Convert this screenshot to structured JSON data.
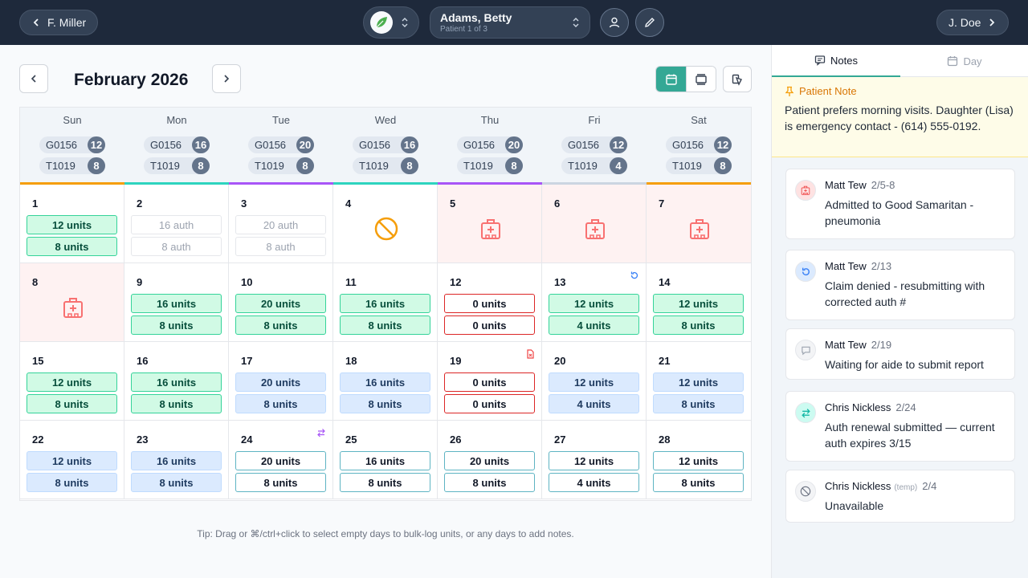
{
  "topbar": {
    "prev_user": "F. Miller",
    "patient_name": "Adams, Betty",
    "patient_sub": "Patient 1 of 3",
    "next_user": "J. Doe"
  },
  "calendar": {
    "month": "February 2026",
    "days_of_week": [
      "Sun",
      "Mon",
      "Tue",
      "Wed",
      "Thu",
      "Fri",
      "Sat"
    ],
    "header": [
      {
        "g": {
          "code": "G0156",
          "count": "12"
        },
        "t": {
          "code": "T1019",
          "count": "8"
        },
        "bar": "#f59e0b"
      },
      {
        "g": {
          "code": "G0156",
          "count": "16"
        },
        "t": {
          "code": "T1019",
          "count": "8"
        },
        "bar": "#2dd4bf"
      },
      {
        "g": {
          "code": "G0156",
          "count": "20"
        },
        "t": {
          "code": "T1019",
          "count": "8"
        },
        "bar": "#a855f7"
      },
      {
        "g": {
          "code": "G0156",
          "count": "16"
        },
        "t": {
          "code": "T1019",
          "count": "8"
        },
        "bar": "#2dd4bf"
      },
      {
        "g": {
          "code": "G0156",
          "count": "20"
        },
        "t": {
          "code": "T1019",
          "count": "8"
        },
        "bar": "#a855f7"
      },
      {
        "g": {
          "code": "G0156",
          "count": "12"
        },
        "t": {
          "code": "T1019",
          "count": "4"
        },
        "bar": "#cbd5e1"
      },
      {
        "g": {
          "code": "G0156",
          "count": "12"
        },
        "t": {
          "code": "T1019",
          "count": "8"
        },
        "bar": "#f59e0b"
      }
    ],
    "days": [
      {
        "n": "1",
        "type": "units",
        "style": "green",
        "a": "12 units",
        "b": "8 units"
      },
      {
        "n": "2",
        "type": "units",
        "style": "auth",
        "a": "16 auth",
        "b": "8 auth"
      },
      {
        "n": "3",
        "type": "units",
        "style": "auth",
        "a": "20 auth",
        "b": "8 auth"
      },
      {
        "n": "4",
        "type": "unavailable"
      },
      {
        "n": "5",
        "type": "hospital"
      },
      {
        "n": "6",
        "type": "hospital"
      },
      {
        "n": "7",
        "type": "hospital"
      },
      {
        "n": "8",
        "type": "hospital"
      },
      {
        "n": "9",
        "type": "units",
        "style": "green",
        "a": "16 units",
        "b": "8 units"
      },
      {
        "n": "10",
        "type": "units",
        "style": "green",
        "a": "20 units",
        "b": "8 units"
      },
      {
        "n": "11",
        "type": "units",
        "style": "green",
        "a": "16 units",
        "b": "8 units"
      },
      {
        "n": "12",
        "type": "units",
        "style": "red",
        "a": "0 units",
        "b": "0 units"
      },
      {
        "n": "13",
        "type": "units",
        "style": "green",
        "a": "12 units",
        "b": "4 units",
        "flag": "resubmit"
      },
      {
        "n": "14",
        "type": "units",
        "style": "green",
        "a": "12 units",
        "b": "8 units"
      },
      {
        "n": "15",
        "type": "units",
        "style": "green",
        "a": "12 units",
        "b": "8 units"
      },
      {
        "n": "16",
        "type": "units",
        "style": "green",
        "a": "16 units",
        "b": "8 units"
      },
      {
        "n": "17",
        "type": "units",
        "style": "blue",
        "a": "20 units",
        "b": "8 units"
      },
      {
        "n": "18",
        "type": "units",
        "style": "blue",
        "a": "16 units",
        "b": "8 units"
      },
      {
        "n": "19",
        "type": "units",
        "style": "red",
        "a": "0 units",
        "b": "0 units",
        "flag": "report"
      },
      {
        "n": "20",
        "type": "units",
        "style": "blue",
        "a": "12 units",
        "b": "4 units"
      },
      {
        "n": "21",
        "type": "units",
        "style": "blue",
        "a": "12 units",
        "b": "8 units"
      },
      {
        "n": "22",
        "type": "units",
        "style": "blue",
        "a": "12 units",
        "b": "8 units"
      },
      {
        "n": "23",
        "type": "units",
        "style": "blue",
        "a": "16 units",
        "b": "8 units"
      },
      {
        "n": "24",
        "type": "units",
        "style": "outline",
        "a": "20 units",
        "b": "8 units",
        "flag": "transfer"
      },
      {
        "n": "25",
        "type": "units",
        "style": "outline",
        "a": "16 units",
        "b": "8 units"
      },
      {
        "n": "26",
        "type": "units",
        "style": "outline",
        "a": "20 units",
        "b": "8 units"
      },
      {
        "n": "27",
        "type": "units",
        "style": "outline",
        "a": "12 units",
        "b": "4 units"
      },
      {
        "n": "28",
        "type": "units",
        "style": "outline",
        "a": "12 units",
        "b": "8 units"
      }
    ],
    "tip": "Tip: Drag or ⌘/ctrl+click to select empty days to bulk-log units, or any days to add notes."
  },
  "sidebar": {
    "tabs": [
      "Notes",
      "Day"
    ],
    "patient_note": {
      "title": "Patient Note",
      "text": "Patient prefers morning visits. Daughter (Lisa) is emergency contact - (614) 555-0192."
    },
    "notes": [
      {
        "icon": "hospital-icon",
        "author": "Matt Tew",
        "tag": "",
        "date": "2/5-8",
        "text": "Admitted to Good Samaritan - pneumonia"
      },
      {
        "icon": "resubmit-icon",
        "author": "Matt Tew",
        "tag": "",
        "date": "2/13",
        "text": "Claim denied - resubmitting with corrected auth #"
      },
      {
        "icon": "comment-icon",
        "author": "Matt Tew",
        "tag": "",
        "date": "2/19",
        "text": "Waiting for aide to submit report"
      },
      {
        "icon": "transfer-icon",
        "author": "Chris Nickless",
        "tag": "",
        "date": "2/24",
        "text": "Auth renewal submitted — current auth expires 3/15"
      },
      {
        "icon": "unavailable-icon",
        "author": "Chris Nickless",
        "tag": "(temp)",
        "date": "2/4",
        "text": "Unavailable"
      }
    ]
  },
  "colors": {
    "accent": "#34a895",
    "topbar": "#1e293b",
    "hospital": "#f87171",
    "unavailable": "#f59e0b",
    "resubmit": "#3b82f6",
    "transfer": "#a855f7"
  }
}
